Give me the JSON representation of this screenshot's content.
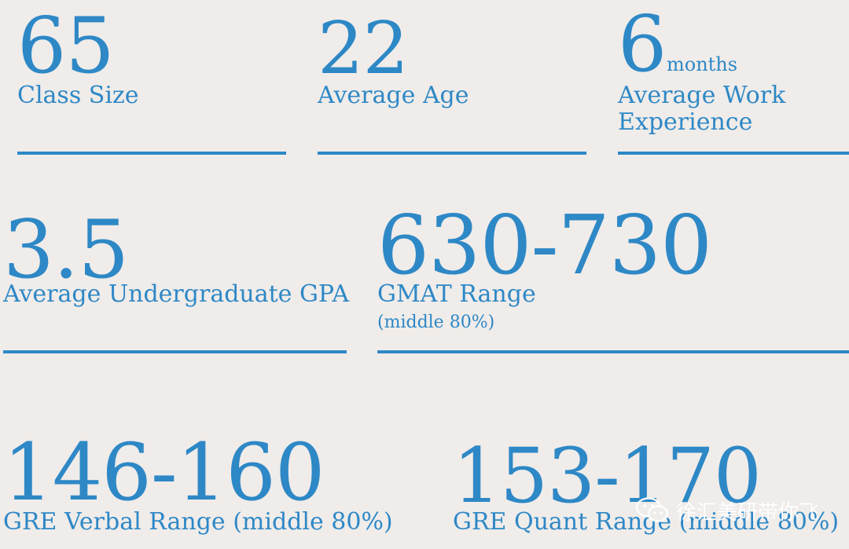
{
  "stats": {
    "class_size": {
      "value": "65",
      "label": "Class Size"
    },
    "average_age": {
      "value": "22",
      "label": "Average Age"
    },
    "work_experience": {
      "value": "6",
      "unit": "months",
      "label_line1": "Average Work",
      "label_line2": "Experience"
    },
    "gpa": {
      "value": "3.5",
      "label": "Average Undergraduate GPA"
    },
    "gmat": {
      "value": "630-730",
      "label": "GMAT Range",
      "sublabel": "(middle 80%)"
    },
    "gre_verbal": {
      "value": "146-160",
      "label": "GRE Verbal Range (middle 80%)"
    },
    "gre_quant": {
      "value": "153-170",
      "label": "GRE Quant Range (middle 80%)"
    }
  },
  "watermark": {
    "text": "徐汇美研带你飞",
    "icon": "wechat-icon"
  },
  "colors": {
    "background": "#efecea",
    "accent": "#2e88c6"
  }
}
